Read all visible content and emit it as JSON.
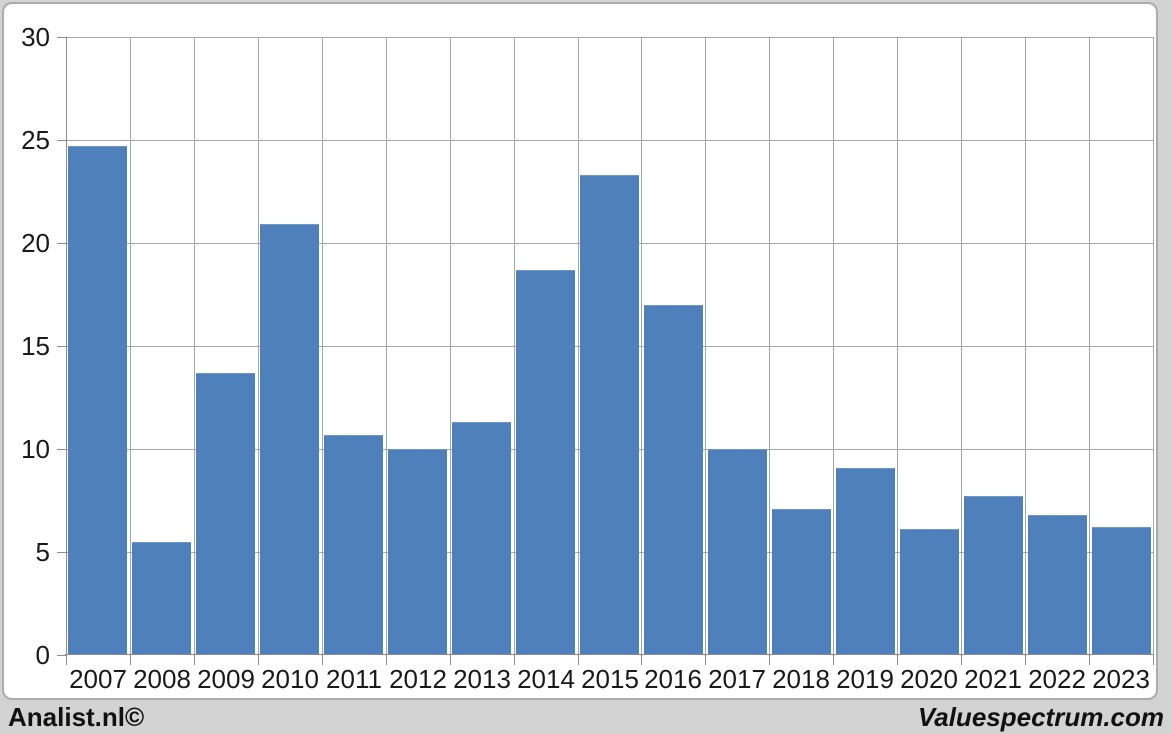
{
  "chart_data": {
    "type": "bar",
    "title": "",
    "xlabel": "",
    "ylabel": "",
    "categories": [
      "2007",
      "2008",
      "2009",
      "2010",
      "2011",
      "2012",
      "2013",
      "2014",
      "2015",
      "2016",
      "2017",
      "2018",
      "2019",
      "2020",
      "2021",
      "2022",
      "2023"
    ],
    "values": [
      24.7,
      5.5,
      13.7,
      20.9,
      10.7,
      10.0,
      11.3,
      18.7,
      23.3,
      17.0,
      10.0,
      7.1,
      9.1,
      6.1,
      7.7,
      6.8,
      6.2
    ],
    "ylim": [
      0,
      30
    ],
    "yticks": [
      0,
      5,
      10,
      15,
      20,
      25,
      30
    ],
    "grid": true,
    "legend": "none",
    "bar_color": "#4e81bc",
    "gridline_color": "#a6a6a6",
    "axis_color": "#8c8c8c"
  },
  "footer": {
    "left_brand": "Analist.nl©",
    "right_brand": "Valuespectrum.com"
  }
}
